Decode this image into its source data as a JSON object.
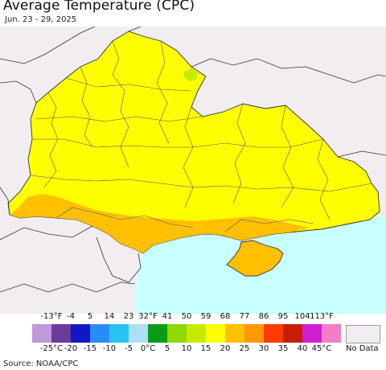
{
  "header": {
    "title": "Average Temperature (CPC)",
    "subtitle": "Jun. 23 - 29, 2025"
  },
  "map": {
    "colors": {
      "land_nodata": "#f1edf1",
      "sea": "#c8ffff",
      "temp_15_20": "#ffff00",
      "temp_20_25": "#ffc000",
      "temp_10_15": "#c7eb00",
      "borders": "#4d4d4d"
    }
  },
  "legend": {
    "fahrenheit_ticks": [
      "-13°F",
      "-4",
      "5",
      "14",
      "23",
      "32°F",
      "41",
      "50",
      "59",
      "68",
      "77",
      "86",
      "95",
      "104",
      "113°F"
    ],
    "celsius_ticks": [
      "-25°C",
      "-20",
      "-15",
      "-10",
      "-5",
      "0°C",
      "5",
      "10",
      "15",
      "20",
      "25",
      "30",
      "35",
      "40",
      "45°C"
    ],
    "bins": [
      {
        "range_c": "< -25",
        "color": "#c397dc"
      },
      {
        "range_c": "-25 to -20",
        "color": "#6a3d9a"
      },
      {
        "range_c": "-20 to -15",
        "color": "#1515c8"
      },
      {
        "range_c": "-15 to -10",
        "color": "#2a8cf0"
      },
      {
        "range_c": "-10 to -5",
        "color": "#27c3f5"
      },
      {
        "range_c": "-5 to 0",
        "color": "#aee0f5"
      },
      {
        "range_c": "0 to 5",
        "color": "#0a9b19"
      },
      {
        "range_c": "5 to 10",
        "color": "#8fd800"
      },
      {
        "range_c": "10 to 15",
        "color": "#c7eb00"
      },
      {
        "range_c": "15 to 20",
        "color": "#ffff00"
      },
      {
        "range_c": "20 to 25",
        "color": "#ffc000"
      },
      {
        "range_c": "25 to 30",
        "color": "#ff9800"
      },
      {
        "range_c": "30 to 35",
        "color": "#ff3b00"
      },
      {
        "range_c": "35 to 40",
        "color": "#c81e00"
      },
      {
        "range_c": "40 to 45",
        "color": "#d21ed2"
      },
      {
        "range_c": "> 45",
        "color": "#f07dc8"
      }
    ],
    "nodata_label": "No Data",
    "nodata_color": "#f1edf1"
  },
  "footer": {
    "source": "Source: NOAA/CPC"
  }
}
